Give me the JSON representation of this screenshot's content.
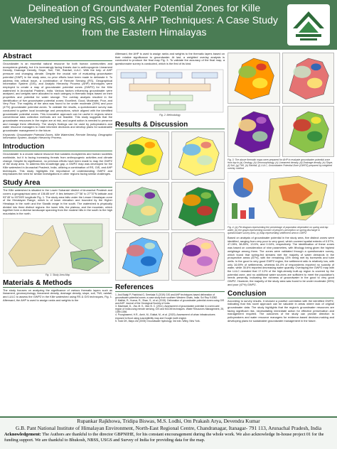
{
  "header": {
    "title": "Delineation of Groundwater Potential Zones for Kille Watershed using RS, GIS & AHP Techniques: A Case Study from the Eastern Himalayas"
  },
  "abstract": {
    "heading": "Abstract",
    "text": "Groundwater is an essential natural resource for both human communities and ecosystems globally, but it is increasingly facing threats due to anthropogenic Lineament Density, Drainage Density, Slope, Soil, TWI, Rainfall, LULC. With the help of AHP pressure and changing climate. Despite the crucial role of evaluating groundwater potential (GWP) in the study area, no prior efforts have been made to delineate it. To address this critical issue, a combination of Remote Sensing (RS), Geographical Information System (GIS), and Analytic Hierarchy Process (AHP) techniques were employed to create a map of groundwater potential zones (GWPZ) for the Kille watershed in Arunachal Pradesh, India. Various factors influencing groundwater were analysed, and weights were allocated to each category in thematic maps based on their properties and potential for water storage. The overlay analysis resulted in the identification of five groundwater potential zones: Excellent, Good, Moderate, Poor, and Very Poor. The majority of the area was found to be under moderate (39%) and poor (47%) groundwater potential zones. To validate the results, a questionnaire survey was conducted to gather local knowledge and perceptions, which aligned with the identified groundwater potential zones. This innovative approach can be useful in regions where conventional data collection methods are not feasible. This study suggests that the groundwater resources in the region are at risk, and urgent action is needed to preserve and manage them effectively. The study's findings can be used by policymakers and water resource managers to make informed decisions and develop plans for sustainable groundwater management in the future.",
    "keywords": "Keywords: Groundwater Potential Zones, Kille Watershed, Remote Sensing, Geographic Information System, Analytic Hierarchy Process."
  },
  "introduction": {
    "heading": "Introduction",
    "text": "Groundwater is a crucial natural resource that sustains ecosystems and human societies worldwide, but it is facing increasing threats from anthropogenic activities and climate change. Despite its significance, no previous efforts have been made to map the GWPZ of the study area. To address this knowledge gap, a GWPZ map was developed for the Kille watershed in Arunachal Pradesh, India, utilizing a combination of RS, GIS, and AHP techniques. This study highlights the importance of understanding GWPZ and emphasizes the need for similar investigations in other regions facing similar challenges."
  },
  "study_area": {
    "heading": "Study Area",
    "text": "The Kille watershed is situated in the Lower Subansiri district of Arunachal Pradesh and covers a geographical area of 136.85 km². It lies between 27°36' to 27°37'N latitude and 93°45' to 93°55'E longitude Fig. 1. The study area falls under the Lesser Himalayan zone of the Himalayan Range, which is of lower elevation and bounded by the Higher Himalaya in the north and the Siwalik range in the south. The watershed is physically divided into three distinct regions: the lower hills, the plateau, and the mountain, which together form a diverse landscape spanning from the modest hills in the south to the high mountains in the north.",
    "fig_caption": "Fig. 1: Study Area Map"
  },
  "methods": {
    "heading": "Materials & Methods",
    "text": "The study focuses on analyzing the significance of various thematic layers such as lineament, geomorphology, lineament density, drainage density, slope, soil, TWI, rainfall, and LULC to assess the GWPZ in the Kille watershed using RS & GIS techniques, Fig. 1. Afterward, the AHP is used to assign ranks and weights to the",
    "text_continued": "Afterward, the AHP is used to assign ranks and weights to the thematic layers based on their relative significance to groundwater. At last, a weighted overlay analysis is conducted to produce the final map Fig. 3. To validate the accuracy of the final map, a questionnaire survey is conducted, which is the first of its kind.",
    "fig_caption": "Fig. 2: Methodology"
  },
  "results": {
    "heading": "Results & Discussion",
    "fig3_caption": "Fig. 3: The above thematic maps were prepared for AHP to evaluate groundwater potential zone from top to (a) Geology, (b) Geomorphology, (c) Lineament density, (d) Drainage density, (e) Slope, (f) Soil, (g) TWI, (h) Rainfall, (i) LULC, Groundwater Potential Zone (GWPZ) prepared by weighted overlay method",
    "fig4_caption": "Fig. 4: (a) Pie diagram representing the percentage of population dependent on spring and tap water; (b) the graph representing number of people's perception on spring discharge in questionnaire survey area; (c) Map representing settlement area in GWPZ",
    "text": "Based on analysis of groundwater potential in the study area, five distinct zones were identified, ranging from very poor to very good, which covered spatial extents of 0.57%, 47.28%, 38.89%, 13.5%, and 0.04%, respectively. The identification of these zones was based on consideration of nine parameters, with lithology being given the highest weightage among them. The zones were validated through a questionnaire survey, which found that spring-fed streams met the majority of water demands in the prospective areas (87%), with the remaining 13% being met by borewells and tube wells. In the good to very good GWPZ region, the settlement ratio is relatively low, with only 16.69% of settlements, whereas 64.4% of respondents reported no scarcity of water, while 35.6% reported decreasing water quantity. Overlaying the GWPZ map with the LULC revealed that 17.12% of the high-density built-up region is covered by the potential zone, and no additional water sources are sufficient to meet the population's needs presently, indicating the richness of groundwater in the good to very good GWPZ. However, the majority of the study area was found to be under moderate (39%) and poor (47%) GWPZ."
  },
  "references": {
    "heading": "References",
    "items": [
      "1. Arul Balaji P, Pashkhal G, Sreekala S (2019) GIS and AHP techniques based delineation of groundwater potential zones: a case study from southern Western Ghats, India. Sci Rep 9:2082.",
      "2. Mallick, R., Kumar, R., Shan, S., et al. (2019). Delineation of groundwater potential zones using GIS and AHP. Journal of the Geological Society of India.",
      "3. Machiwal, D., Jha, M. K., Mal, B. C. (2011). Assessment of groundwater potential in a semi-arid region of India using remote sensing, GIS and MCDM techniques. Water Resources Management, 25, 1359-1386.",
      "4. Pourghasemi, H.R., Amiri, M., Edalat, M., et al. (2020). Assessment of urban infrastructures exposed to flood using susceptibility map and Google earth engine.",
      "5. Todd DK, Mays LW (2005) Groundwater hydrology. 3rd edn. Wiley, New York."
    ]
  },
  "conclusion": {
    "heading": "Conclusion",
    "text": "According to survey results, it showed a positive correlation with the identified GWPZ, indicating that this novel approach can be valuable in areas where lack of original groundwater data. The study highlights that the region's groundwater resources are facing significant risk, necessitating immediate action for effective preservation and management required. The outcomes of the study can provide direction to policymakers and water resource managers for evidence-based decision-making and developing plans for sustainable groundwater management in the future."
  },
  "footer": {
    "authors": "Rupankar Rajkhowa, Tridipa Biswas, M.S. Lodhi, Om Prakash Arya, Devendra Kumar",
    "affiliation": "G.B. Pant National Institute of Himalayan Environment, North-East Regional Centre, Chandranagar, Itanagar- 791 113, Arunachal Pradesh, India",
    "ack_label": "Acknowledgement:",
    "ack_text": "The Authors are thankful to the director GBPNIHE, for his constant encouragement during the whole work. We also acknowledge In-house project 01 for the funding support. We are thankful to Bhukosh, NBSS, USGS and Survey of India for providing data for the map."
  }
}
